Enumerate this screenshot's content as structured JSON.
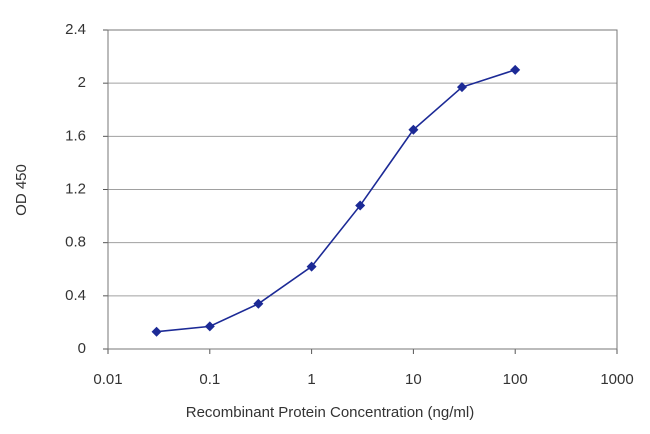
{
  "chart_data": {
    "type": "line",
    "xlabel": "Recombinant Protein Concentration (ng/ml)",
    "ylabel": "OD 450",
    "xscale": "log",
    "x": [
      0.03,
      0.1,
      0.3,
      1,
      3,
      10,
      30,
      100
    ],
    "series": [
      {
        "color": "#1c2a96",
        "values": [
          0.13,
          0.17,
          0.34,
          0.62,
          1.08,
          1.65,
          1.97,
          2.1
        ]
      }
    ],
    "xlim": [
      0.01,
      1000
    ],
    "xticks": [
      0.01,
      0.1,
      1,
      10,
      100,
      1000
    ],
    "ylim": [
      0,
      2.4
    ],
    "yticks": [
      0,
      0.4,
      0.8,
      1.2,
      1.6,
      2,
      2.4
    ],
    "grid": true
  }
}
